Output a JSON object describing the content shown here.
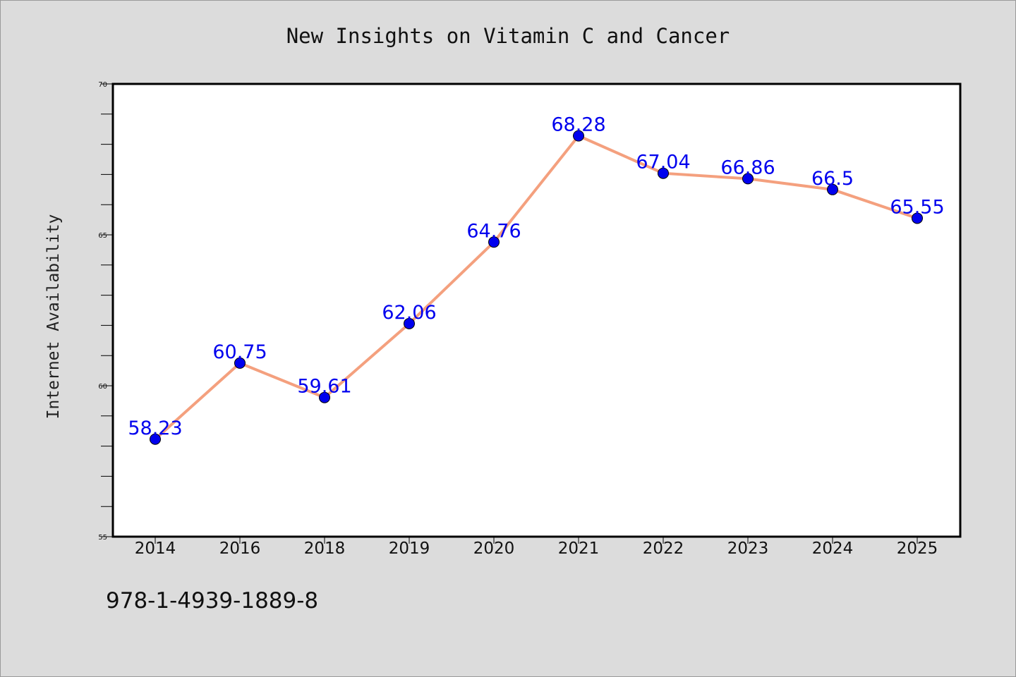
{
  "chart_data": {
    "type": "line",
    "title": "New Insights on Vitamin C and Cancer",
    "xlabel": "",
    "ylabel": "Internet Availability",
    "categories": [
      "2014",
      "2016",
      "2018",
      "2019",
      "2020",
      "2021",
      "2022",
      "2023",
      "2024",
      "2025"
    ],
    "series": [
      {
        "values": [
          58.23,
          60.75,
          59.61,
          62.06,
          64.76,
          68.28,
          67.04,
          66.86,
          66.5,
          65.55
        ],
        "labels": [
          "58.23",
          "60.75",
          "59.61",
          "62.06",
          "64.76",
          "68.28",
          "67.04",
          "66.86",
          "66.5",
          "65.55"
        ],
        "line_color": "#f4a07e",
        "marker_color": "#0000ee",
        "label_color": "#0000ee"
      }
    ],
    "ylim": [
      55,
      70
    ],
    "yticks": [
      "55",
      "60",
      "65",
      "70"
    ],
    "grid": false,
    "legend": "none"
  },
  "footnote": "978-1-4939-1889-8",
  "colors": {
    "background": "#dcdcdc",
    "plot_background": "#ffffff",
    "axis": "#000000"
  }
}
